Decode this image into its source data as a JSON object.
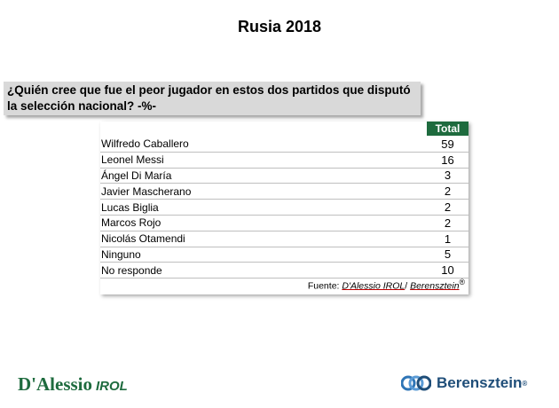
{
  "title": "Rusia 2018",
  "question": "¿Quién cree que fue el peor jugador en estos dos partidos que disputó la selección nacional? -%-",
  "colors": {
    "header_bg": "#1e6b3e",
    "question_bg": "#d9d9d9",
    "brand_right": "#1f4e79"
  },
  "chart_data": {
    "type": "table",
    "title": "Rusia 2018",
    "columns": [
      "Total"
    ],
    "categories": [
      "Wilfredo Caballero",
      "Leonel Messi",
      "Ángel Di María",
      "Javier Mascherano",
      "Lucas Biglia",
      "Marcos Rojo",
      "Nicolás Otamendi",
      "Ninguno",
      "No responde"
    ],
    "values": [
      59,
      16,
      3,
      2,
      2,
      2,
      1,
      5,
      10
    ]
  },
  "source": {
    "prefix": "Fuente: ",
    "main": "D'Alessio IROL",
    "sep": "/ ",
    "second": "Berensztein",
    "mark": "®"
  },
  "logos": {
    "left_main": "D'Alessio",
    "left_sub": "IROL",
    "right_name": "Berensztein",
    "right_mark": "®"
  }
}
